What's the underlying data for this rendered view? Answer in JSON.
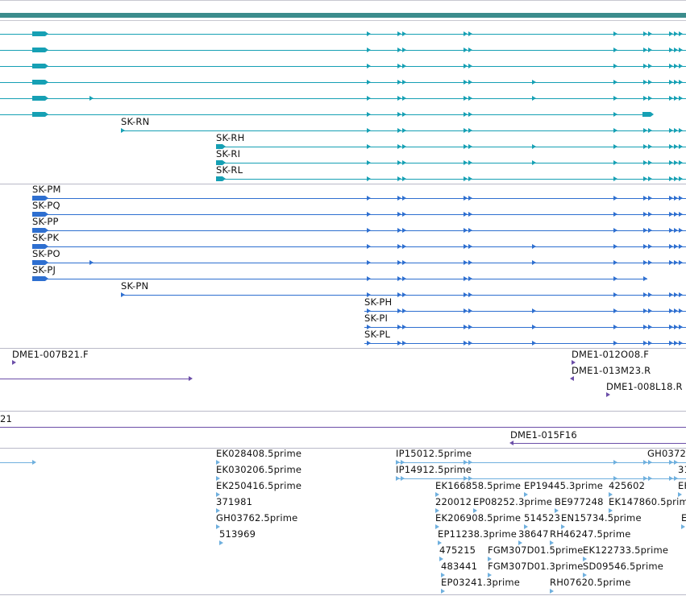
{
  "colors": {
    "teal": "#16a0b4",
    "teal_dark": "#3b8c8c",
    "blue": "#2e6fd0",
    "purple": "#6b4ea8",
    "lightblue": "#6fb0de",
    "separator": "#b9b9c8"
  },
  "track_teal": {
    "labels": [
      "SK-RN",
      "SK-RH",
      "SK-RI",
      "SK-RL"
    ]
  },
  "track_blue": {
    "labels": [
      "SK-PM",
      "SK-PQ",
      "SK-PP",
      "SK-PK",
      "SK-PO",
      "SK-PJ",
      "SK-PN",
      "SK-PH",
      "SK-PI",
      "SK-PL"
    ]
  },
  "track_purple": {
    "labels": [
      "DME1-007B21.F",
      "DME1-012O08.F",
      "DME1-013M23.R",
      "DME1-008L18.R"
    ]
  },
  "track_scaffold": {
    "left_label": "21",
    "right_label": "DME1-015F16"
  },
  "track_est": {
    "labels": [
      "EK028408.5prime",
      "EK030206.5prime",
      "EK250416.5prime",
      "371981",
      "GH03762.5prime",
      "513969",
      "IP15012.5prime",
      "IP14912.5prime",
      "GH0372",
      "31",
      "EK166858.5prime",
      "EP19445.3prime",
      "425602",
      "EK",
      "220012",
      "EP08252.3prime",
      "BE977248",
      "EK147860.5prime",
      "EK206908.5prime",
      "514523",
      "EN15734.5prime",
      "E",
      "EP11238.3prime",
      "38647",
      "RH46247.5prime",
      "475215",
      "FGM307D01.5prime",
      "EK122733.5prime",
      "483441",
      "FGM307D01.3prime",
      "SD09546.5prime",
      "EP03241.3prime",
      "RH07620.5prime"
    ]
  }
}
